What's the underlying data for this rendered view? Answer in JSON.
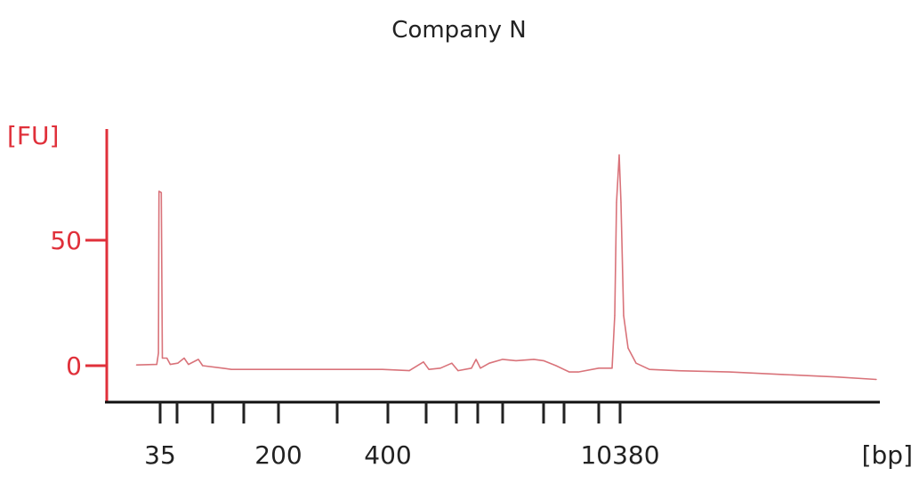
{
  "chart_data": {
    "type": "line",
    "title": "Company N",
    "xlabel": "[bp]",
    "ylabel": "[FU]",
    "x_scale": "ladder (non-linear), size standard positions",
    "ladder_ticks_bp": [
      35,
      50,
      100,
      150,
      200,
      300,
      400,
      500,
      600,
      700,
      1000,
      2000,
      3000,
      7000,
      10380
    ],
    "x_tick_labels": [
      "35",
      "200",
      "400",
      "10380"
    ],
    "y_ticks": [
      0,
      50
    ],
    "y_tick_labels": [
      "0",
      "50"
    ],
    "ylim": [
      -14,
      94
    ],
    "grid": false,
    "legend": "none",
    "colors": {
      "trace": "#d9737a",
      "y_axis": "#e0303a",
      "x_axis": "#111111",
      "title": "#222222"
    },
    "series": [
      {
        "x": [
          14,
          32,
          33.5,
          34,
          36,
          37,
          41,
          44,
          51,
          60,
          66,
          80,
          86,
          116,
          130,
          389,
          456,
          493,
          509,
          547,
          585,
          608,
          671,
          692,
          732,
          839,
          1000,
          1326,
          1761,
          2000,
          2609,
          3615,
          4641,
          7000,
          9113,
          9535,
          9817,
          10239,
          10521,
          10943,
          11647,
          12915,
          15028,
          19254,
          27706,
          36158,
          44610,
          50949
        ],
        "y": [
          0.3,
          0.5,
          5,
          69.5,
          69,
          3,
          3,
          0.5,
          1,
          3,
          0.5,
          2.5,
          0,
          -1,
          -1.5,
          -1.5,
          -2,
          1.5,
          -1.5,
          -1,
          1,
          -2,
          -1,
          2.5,
          -1,
          1,
          2.5,
          2,
          2.5,
          2,
          0,
          -2.5,
          -2.5,
          -1,
          -1,
          20,
          65,
          84,
          65,
          20,
          7,
          1,
          -1.5,
          -2,
          -2.5,
          -3.5,
          -4.5,
          -5.5
        ]
      }
    ]
  }
}
